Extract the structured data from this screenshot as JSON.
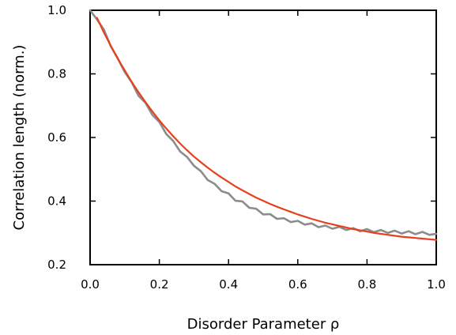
{
  "chart_data": {
    "type": "line",
    "title": "",
    "xlabel": "Disorder Parameter ρ",
    "ylabel": "Correlation length (norm.)",
    "xlim": [
      0.0,
      1.0
    ],
    "ylim": [
      0.2,
      1.0
    ],
    "x_ticks": [
      0.0,
      0.2,
      0.4,
      0.6,
      0.8,
      1.0
    ],
    "x_tick_labels": [
      "0.0",
      "0.2",
      "0.4",
      "0.6",
      "0.8",
      "1.0"
    ],
    "y_ticks": [
      0.2,
      0.4,
      0.6,
      0.8,
      1.0
    ],
    "y_tick_labels": [
      "0.2",
      "0.4",
      "0.6",
      "0.8",
      "1.0"
    ],
    "grid": false,
    "legend": "none",
    "series": [
      {
        "color": "#8c8c8c",
        "style": "noisy measurement",
        "x": [
          0.0,
          0.02,
          0.04,
          0.06,
          0.08,
          0.1,
          0.12,
          0.14,
          0.16,
          0.18,
          0.2,
          0.22,
          0.24,
          0.26,
          0.28,
          0.3,
          0.32,
          0.34,
          0.36,
          0.38,
          0.4,
          0.42,
          0.44,
          0.46,
          0.48,
          0.5,
          0.52,
          0.54,
          0.56,
          0.58,
          0.6,
          0.62,
          0.64,
          0.66,
          0.68,
          0.7,
          0.72,
          0.74,
          0.76,
          0.78,
          0.8,
          0.82,
          0.84,
          0.86,
          0.88,
          0.9,
          0.92,
          0.94,
          0.96,
          0.98,
          1.0
        ],
        "y": [
          1.0,
          0.975,
          0.935,
          0.89,
          0.845,
          0.81,
          0.77,
          0.735,
          0.705,
          0.675,
          0.645,
          0.615,
          0.585,
          0.56,
          0.535,
          0.515,
          0.49,
          0.47,
          0.45,
          0.435,
          0.42,
          0.405,
          0.395,
          0.383,
          0.372,
          0.362,
          0.355,
          0.348,
          0.342,
          0.338,
          0.334,
          0.33,
          0.326,
          0.322,
          0.319,
          0.317,
          0.315,
          0.313,
          0.311,
          0.309,
          0.308,
          0.306,
          0.305,
          0.304,
          0.303,
          0.302,
          0.301,
          0.3,
          0.299,
          0.298,
          0.297
        ]
      },
      {
        "color": "#e8401c",
        "style": "fit",
        "x": [
          0.02,
          0.04,
          0.06,
          0.08,
          0.1,
          0.12,
          0.14,
          0.16,
          0.18,
          0.2,
          0.22,
          0.24,
          0.26,
          0.28,
          0.3,
          0.32,
          0.34,
          0.36,
          0.38,
          0.4,
          0.42,
          0.44,
          0.46,
          0.48,
          0.5,
          0.52,
          0.54,
          0.56,
          0.58,
          0.6,
          0.62,
          0.64,
          0.66,
          0.68,
          0.7,
          0.72,
          0.74,
          0.76,
          0.78,
          0.8,
          0.82,
          0.84,
          0.86,
          0.88,
          0.9,
          0.92,
          0.94,
          0.96,
          0.98,
          1.0
        ],
        "y": [
          0.976,
          0.93,
          0.888,
          0.848,
          0.811,
          0.775,
          0.742,
          0.711,
          0.682,
          0.654,
          0.628,
          0.604,
          0.581,
          0.56,
          0.54,
          0.522,
          0.505,
          0.489,
          0.474,
          0.46,
          0.446,
          0.434,
          0.422,
          0.411,
          0.401,
          0.391,
          0.382,
          0.374,
          0.366,
          0.358,
          0.351,
          0.344,
          0.338,
          0.332,
          0.327,
          0.322,
          0.317,
          0.312,
          0.308,
          0.304,
          0.3,
          0.297,
          0.294,
          0.291,
          0.288,
          0.286,
          0.284,
          0.282,
          0.28,
          0.278
        ]
      }
    ]
  }
}
